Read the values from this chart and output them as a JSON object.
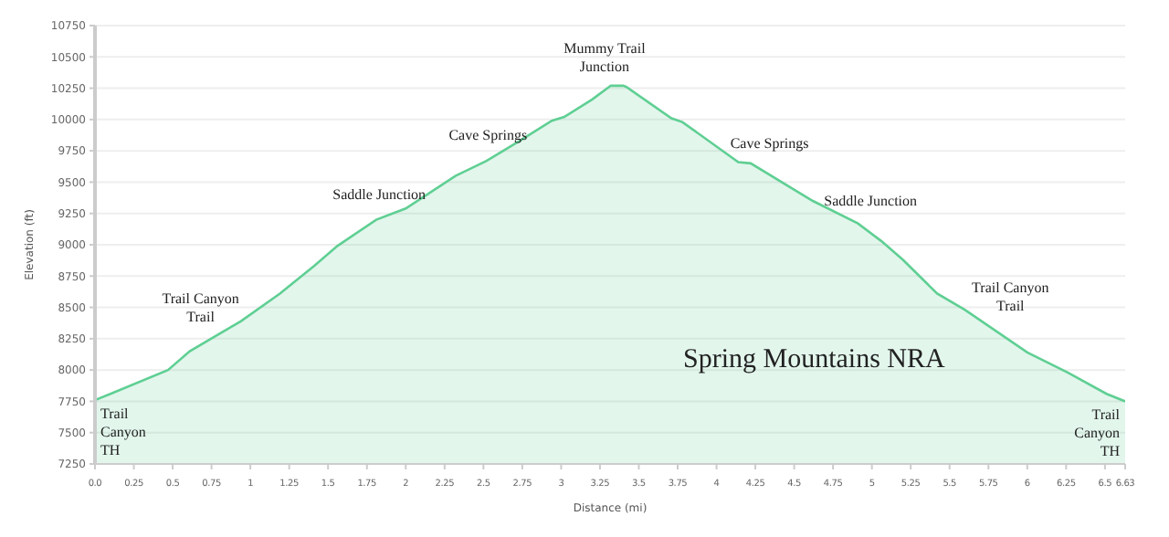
{
  "chart_data": {
    "type": "area",
    "xlabel": "Distance  (mi)",
    "ylabel": "Elevation (ft)",
    "x": [
      0,
      0.1,
      0.47,
      0.61,
      0.94,
      1.19,
      1.41,
      1.56,
      1.81,
      2.0,
      2.32,
      2.52,
      2.72,
      2.94,
      3.02,
      3.2,
      3.32,
      3.4,
      3.42,
      3.71,
      3.78,
      4.14,
      4.22,
      4.62,
      4.91,
      5.06,
      5.2,
      5.42,
      5.6,
      6.0,
      6.26,
      6.51,
      6.63
    ],
    "series": [
      {
        "color": "#5fcf93",
        "values": [
          7760,
          7810,
          8000,
          8150,
          8390,
          8610,
          8830,
          8990,
          9200,
          9290,
          9550,
          9670,
          9820,
          9990,
          10020,
          10160,
          10270,
          10270,
          10260,
          10010,
          9980,
          9660,
          9650,
          9350,
          9170,
          9030,
          8880,
          8610,
          8480,
          8140,
          7980,
          7810,
          7750
        ]
      }
    ],
    "xlim": [
      0,
      6.63
    ],
    "xticks": [
      {
        "value": 0,
        "label": "0.0"
      },
      0.25,
      0.5,
      0.75,
      1.0,
      1.25,
      1.5,
      1.75,
      2.0,
      2.25,
      2.5,
      2.75,
      3.0,
      3.25,
      3.5,
      3.75,
      4.0,
      4.25,
      4.5,
      4.75,
      5.0,
      5.25,
      5.5,
      5.75,
      6.0,
      6.25,
      6.5,
      6.63
    ],
    "ylim": [
      7250,
      10750
    ],
    "yticks": [
      7250,
      7500,
      7750,
      8000,
      8250,
      8500,
      8750,
      9000,
      9250,
      9500,
      9750,
      10000,
      10250,
      10500,
      10750
    ],
    "grid": "y",
    "legend": false,
    "annotations": [
      {
        "text": "Trail\nCanyon\nTH",
        "x": 0,
        "y": 7760
      },
      {
        "text": "Trail Canyon\nTrail",
        "x": 0.75,
        "y": 8270
      },
      {
        "text": "Saddle Junction",
        "x": 1.9,
        "y": 9250
      },
      {
        "text": "Cave Springs",
        "x": 2.6,
        "y": 9720
      },
      {
        "text": "Mummy Trail\nJunction",
        "x": 3.35,
        "y": 10270
      },
      {
        "text": "Cave Springs",
        "x": 4.2,
        "y": 9655
      },
      {
        "text": "Saddle Junction",
        "x": 4.85,
        "y": 9200
      },
      {
        "text": "Trail Canyon\nTrail",
        "x": 5.75,
        "y": 8360
      },
      {
        "text": "Trail\nCanyon\nTH",
        "x": 6.63,
        "y": 7750
      },
      "Spring Mountains NRA"
    ]
  }
}
